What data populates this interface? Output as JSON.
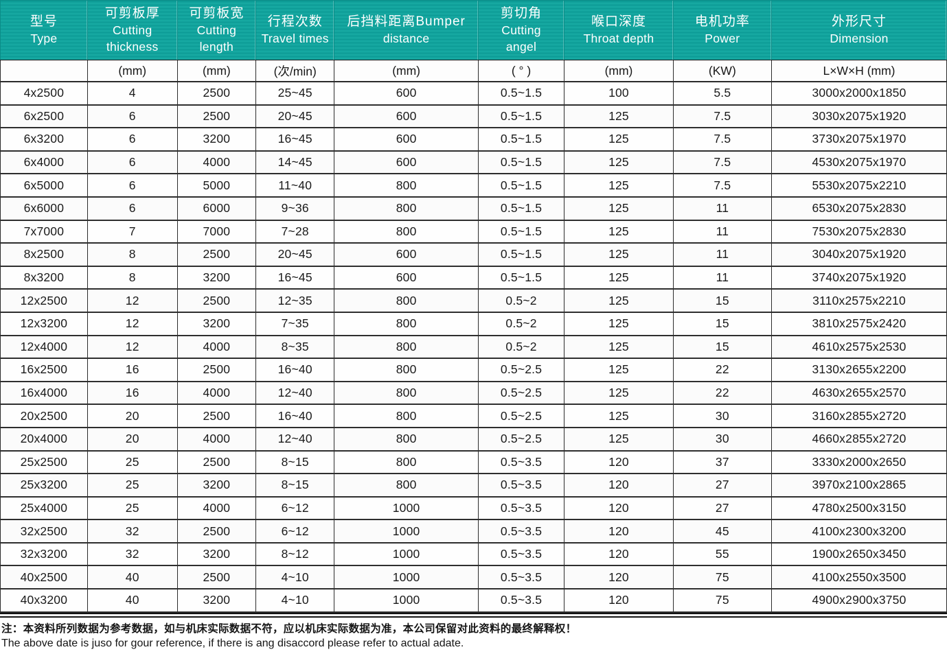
{
  "accent_color": "#0fa29c",
  "border_color": "#2b2b2b",
  "table": {
    "columns": [
      {
        "key": "type",
        "label_lines": [
          "型号",
          "Type"
        ],
        "unit": ""
      },
      {
        "key": "cutting-thickness",
        "label_lines": [
          "可剪板厚",
          "Cutting",
          "thickness"
        ],
        "unit": "(mm)"
      },
      {
        "key": "cutting-length",
        "label_lines": [
          "可剪板宽",
          "Cutting",
          "length"
        ],
        "unit": "(mm)"
      },
      {
        "key": "travel-times",
        "label_lines": [
          "行程次数",
          "Travel times"
        ],
        "unit": "(次/min)"
      },
      {
        "key": "bumper-distance",
        "label_lines": [
          "后挡料距离Bumper",
          "distance"
        ],
        "unit": "(mm)"
      },
      {
        "key": "cutting-angle",
        "label_lines": [
          "剪切角",
          "Cutting",
          "angel"
        ],
        "unit": "( ° )"
      },
      {
        "key": "throat-depth",
        "label_lines": [
          "喉口深度",
          "Throat depth"
        ],
        "unit": "(mm)"
      },
      {
        "key": "power",
        "label_lines": [
          "电机功率",
          "Power"
        ],
        "unit": "(KW)"
      },
      {
        "key": "dimension",
        "label_lines": [
          "外形尺寸",
          "Dimension"
        ],
        "unit": "L×W×H (mm)"
      }
    ],
    "rows": [
      [
        "4x2500",
        "4",
        "2500",
        "25~45",
        "600",
        "0.5~1.5",
        "100",
        "5.5",
        "3000x2000x1850"
      ],
      [
        "6x2500",
        "6",
        "2500",
        "20~45",
        "600",
        "0.5~1.5",
        "125",
        "7.5",
        "3030x2075x1920"
      ],
      [
        "6x3200",
        "6",
        "3200",
        "16~45",
        "600",
        "0.5~1.5",
        "125",
        "7.5",
        "3730x2075x1970"
      ],
      [
        "6x4000",
        "6",
        "4000",
        "14~45",
        "600",
        "0.5~1.5",
        "125",
        "7.5",
        "4530x2075x1970"
      ],
      [
        "6x5000",
        "6",
        "5000",
        "11~40",
        "800",
        "0.5~1.5",
        "125",
        "7.5",
        "5530x2075x2210"
      ],
      [
        "6x6000",
        "6",
        "6000",
        "9~36",
        "800",
        "0.5~1.5",
        "125",
        "11",
        "6530x2075x2830"
      ],
      [
        "7x7000",
        "7",
        "7000",
        "7~28",
        "800",
        "0.5~1.5",
        "125",
        "11",
        "7530x2075x2830"
      ],
      [
        "8x2500",
        "8",
        "2500",
        "20~45",
        "600",
        "0.5~1.5",
        "125",
        "11",
        "3040x2075x1920"
      ],
      [
        "8x3200",
        "8",
        "3200",
        "16~45",
        "600",
        "0.5~1.5",
        "125",
        "11",
        "3740x2075x1920"
      ],
      [
        "12x2500",
        "12",
        "2500",
        "12~35",
        "800",
        "0.5~2",
        "125",
        "15",
        "3110x2575x2210"
      ],
      [
        "12x3200",
        "12",
        "3200",
        "7~35",
        "800",
        "0.5~2",
        "125",
        "15",
        "3810x2575x2420"
      ],
      [
        "12x4000",
        "12",
        "4000",
        "8~35",
        "800",
        "0.5~2",
        "125",
        "15",
        "4610x2575x2530"
      ],
      [
        "16x2500",
        "16",
        "2500",
        "16~40",
        "800",
        "0.5~2.5",
        "125",
        "22",
        "3130x2655x2200"
      ],
      [
        "16x4000",
        "16",
        "4000",
        "12~40",
        "800",
        "0.5~2.5",
        "125",
        "22",
        "4630x2655x2570"
      ],
      [
        "20x2500",
        "20",
        "2500",
        "16~40",
        "800",
        "0.5~2.5",
        "125",
        "30",
        "3160x2855x2720"
      ],
      [
        "20x4000",
        "20",
        "4000",
        "12~40",
        "800",
        "0.5~2.5",
        "125",
        "30",
        "4660x2855x2720"
      ],
      [
        "25x2500",
        "25",
        "2500",
        "8~15",
        "800",
        "0.5~3.5",
        "120",
        "37",
        "3330x2000x2650"
      ],
      [
        "25x3200",
        "25",
        "3200",
        "8~15",
        "800",
        "0.5~3.5",
        "120",
        "27",
        "3970x2100x2865"
      ],
      [
        "25x4000",
        "25",
        "4000",
        "6~12",
        "1000",
        "0.5~3.5",
        "120",
        "27",
        "4780x2500x3150"
      ],
      [
        "32x2500",
        "32",
        "2500",
        "6~12",
        "1000",
        "0.5~3.5",
        "120",
        "45",
        "4100x2300x3200"
      ],
      [
        "32x3200",
        "32",
        "3200",
        "8~12",
        "1000",
        "0.5~3.5",
        "120",
        "55",
        "1900x2650x3450"
      ],
      [
        "40x2500",
        "40",
        "2500",
        "4~10",
        "1000",
        "0.5~3.5",
        "120",
        "75",
        "4100x2550x3500"
      ],
      [
        "40x3200",
        "40",
        "3200",
        "4~10",
        "1000",
        "0.5~3.5",
        "120",
        "75",
        "4900x2900x3750"
      ]
    ]
  },
  "notes": {
    "zh": "注：本资料所列数据为参考数据，如与机床实际数据不符，应以机床实际数据为准，本公司保留对此资料的最终解释权！",
    "en": "The above date is juso for gour reference, if there is ang disaccord please refer to actual adate."
  }
}
